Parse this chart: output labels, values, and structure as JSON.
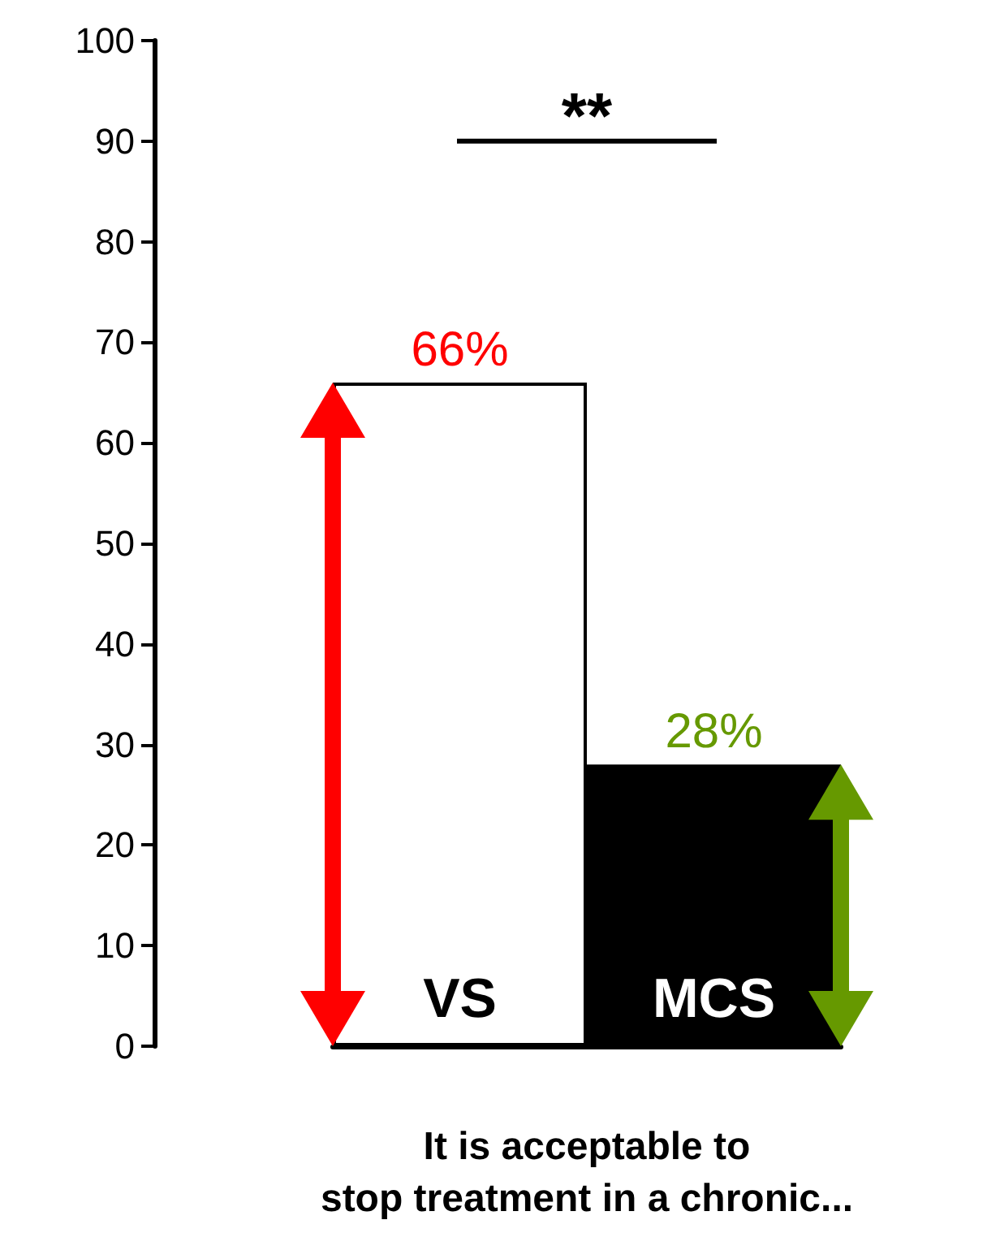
{
  "chart_data": {
    "type": "bar",
    "xlabel": "It is acceptable to\nstop treatment in a chronic...",
    "categories": [
      "VS",
      "MCS"
    ],
    "values": [
      66,
      28
    ],
    "colors": [
      "#ffffff",
      "#000000"
    ],
    "value_labels": [
      "66%",
      "28%"
    ],
    "ylim": [
      0,
      100
    ],
    "yticks": [
      0,
      10,
      20,
      30,
      40,
      50,
      60,
      70,
      80,
      90,
      100
    ],
    "annotations": [
      "**"
    ],
    "grid": false
  }
}
